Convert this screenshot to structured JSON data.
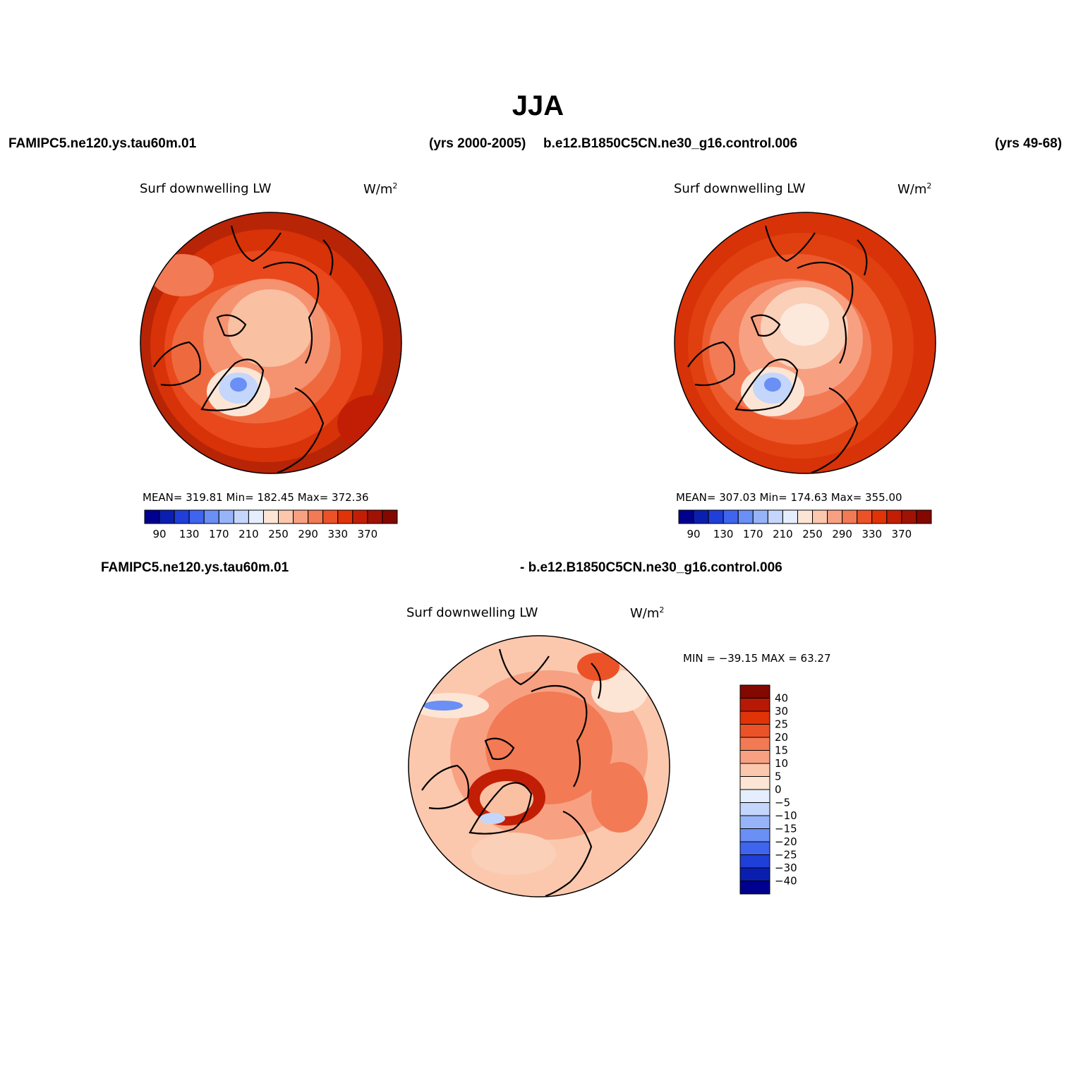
{
  "title": "JJA",
  "header": {
    "case1": "FAMIPC5.ne120.ys.tau60m.01",
    "case1_years": "(yrs 2000-2005)",
    "case2": "b.e12.B1850C5CN.ne30_g16.control.006",
    "case2_years": "(yrs 49-68)"
  },
  "diff_header": {
    "left": "FAMIPC5.ne120.ys.tau60m.01",
    "right": "- b.e12.B1850C5CN.ne30_g16.control.006"
  },
  "panels": [
    {
      "variable": "Surf downwelling LW",
      "units_base": "W/m",
      "units_exp": "2",
      "stats": "MEAN= 319.81   Min= 182.45   Max= 372.36"
    },
    {
      "variable": "Surf downwelling LW",
      "units_base": "W/m",
      "units_exp": "2",
      "stats": "MEAN= 307.03   Min= 174.63   Max= 355.00"
    },
    {
      "variable": "Surf downwelling LW",
      "units_base": "W/m",
      "units_exp": "2",
      "stats": "MIN = −39.15 MAX =   63.27"
    }
  ],
  "colorbar_abs": {
    "colors": [
      "#00008f",
      "#0a1fb0",
      "#1f3fd8",
      "#3f64ee",
      "#6a8ff5",
      "#98b4f8",
      "#c4d6fb",
      "#e4eefd",
      "#fde5d5",
      "#fbc8ad",
      "#f7a182",
      "#f27a55",
      "#ec5228",
      "#e03308",
      "#c21e05",
      "#a01203",
      "#820800"
    ],
    "labels": [
      "90",
      "130",
      "170",
      "210",
      "250",
      "290",
      "330",
      "370"
    ]
  },
  "colorbar_diff": {
    "colors": [
      "#820800",
      "#b81905",
      "#e03308",
      "#ec5228",
      "#f27a55",
      "#f7a182",
      "#fbc8ad",
      "#fde5d5",
      "#e4eefd",
      "#c4d6fb",
      "#98b4f8",
      "#6a8ff5",
      "#3f64ee",
      "#1f3fd8",
      "#0a1fb0",
      "#00008f"
    ],
    "labels": [
      "40",
      "30",
      "25",
      "20",
      "15",
      "10",
      "5",
      "0",
      "−5",
      "−10",
      "−15",
      "−20",
      "−25",
      "−30",
      "−40"
    ]
  }
}
